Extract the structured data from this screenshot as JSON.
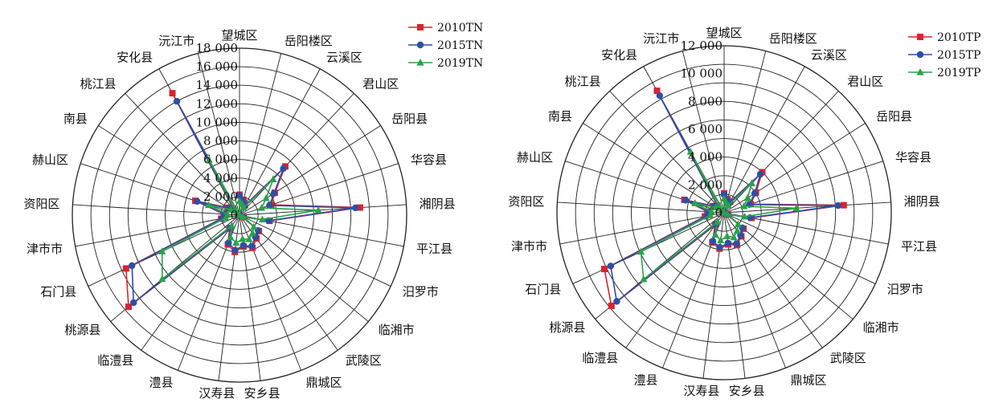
{
  "chart_data": [
    {
      "type": "radar",
      "categories": [
        "望城区",
        "岳阳楼区",
        "云溪区",
        "君山区",
        "岳阳县",
        "华容县",
        "湘阴县",
        "平江县",
        "汨罗市",
        "临湘市",
        "武陵区",
        "鼎城区",
        "安乡县",
        "汉寿县",
        "澧县",
        "临澧县",
        "桃源县",
        "石门县",
        "津市市",
        "资阳区",
        "赫山区",
        "南县",
        "桃江县",
        "安化县",
        "沅江市"
      ],
      "radial_ticks": [
        "0",
        "2 000",
        "4 000",
        "6 000",
        "8 000",
        "10 000",
        "12 000",
        "14 000",
        "16 000",
        "18 000"
      ],
      "rmax": 18000,
      "legend_position": "top-right",
      "series": [
        {
          "name": "2010TN",
          "color": "#d9232f",
          "marker": "square",
          "values": [
            2200,
            1700,
            1200,
            7200,
            4500,
            3600,
            13000,
            3300,
            500,
            2700,
            3100,
            3800,
            3400,
            4000,
            3400,
            1800,
            15500,
            13500,
            2000,
            1700,
            5000,
            1500,
            1000,
            15000,
            0
          ]
        },
        {
          "name": "2015TN",
          "color": "#2e4fa3",
          "marker": "circle",
          "values": [
            2100,
            1600,
            1100,
            6900,
            4400,
            3400,
            12500,
            3200,
            450,
            2600,
            2900,
            3600,
            3300,
            3800,
            3200,
            1700,
            14800,
            12800,
            1900,
            1600,
            4800,
            1400,
            900,
            14000,
            0
          ]
        },
        {
          "name": "2019TN",
          "color": "#2aa24a",
          "marker": "triangle",
          "values": [
            1500,
            1200,
            900,
            5300,
            3400,
            2500,
            8500,
            2500,
            400,
            2000,
            2400,
            2800,
            2600,
            3000,
            2600,
            1400,
            10800,
            9200,
            1500,
            1300,
            3500,
            1100,
            700,
            6800,
            0
          ]
        }
      ]
    },
    {
      "type": "radar",
      "categories": [
        "望城区",
        "岳阳楼区",
        "云溪区",
        "君山区",
        "岳阳县",
        "华容县",
        "湘阴县",
        "平江县",
        "汨罗市",
        "临湘市",
        "武陵区",
        "鼎城区",
        "安乡县",
        "汉寿县",
        "澧县",
        "临澧县",
        "桃源县",
        "石门县",
        "津市市",
        "资阳区",
        "赫山区",
        "南县",
        "桃江县",
        "安化县",
        "沅江市"
      ],
      "radial_ticks": [
        "0",
        "2 000",
        "4 000",
        "6 000",
        "8 000",
        "10 000",
        "12 000"
      ],
      "rmax": 12000,
      "legend_position": "top-right",
      "series": [
        {
          "name": "2010TP",
          "color": "#d9232f",
          "marker": "square",
          "values": [
            1400,
            1000,
            900,
            4000,
            2700,
            2000,
            8600,
            2000,
            300,
            1800,
            2100,
            2500,
            2300,
            2600,
            2300,
            1100,
            10500,
            9500,
            1400,
            1200,
            3000,
            900,
            700,
            10000,
            0
          ]
        },
        {
          "name": "2015TP",
          "color": "#2e4fa3",
          "marker": "circle",
          "values": [
            1300,
            950,
            850,
            3800,
            2600,
            1900,
            8200,
            1900,
            280,
            1700,
            2000,
            2400,
            2200,
            2500,
            2200,
            1000,
            10000,
            9000,
            1300,
            1100,
            2900,
            850,
            650,
            9600,
            0
          ]
        },
        {
          "name": "2019TP",
          "color": "#2aa24a",
          "marker": "triangle",
          "values": [
            1000,
            700,
            600,
            2900,
            2000,
            1500,
            5200,
            1500,
            250,
            1300,
            1600,
            1900,
            1700,
            2000,
            1700,
            800,
            7500,
            6600,
            1000,
            900,
            2200,
            700,
            500,
            5000,
            0
          ]
        }
      ]
    }
  ]
}
